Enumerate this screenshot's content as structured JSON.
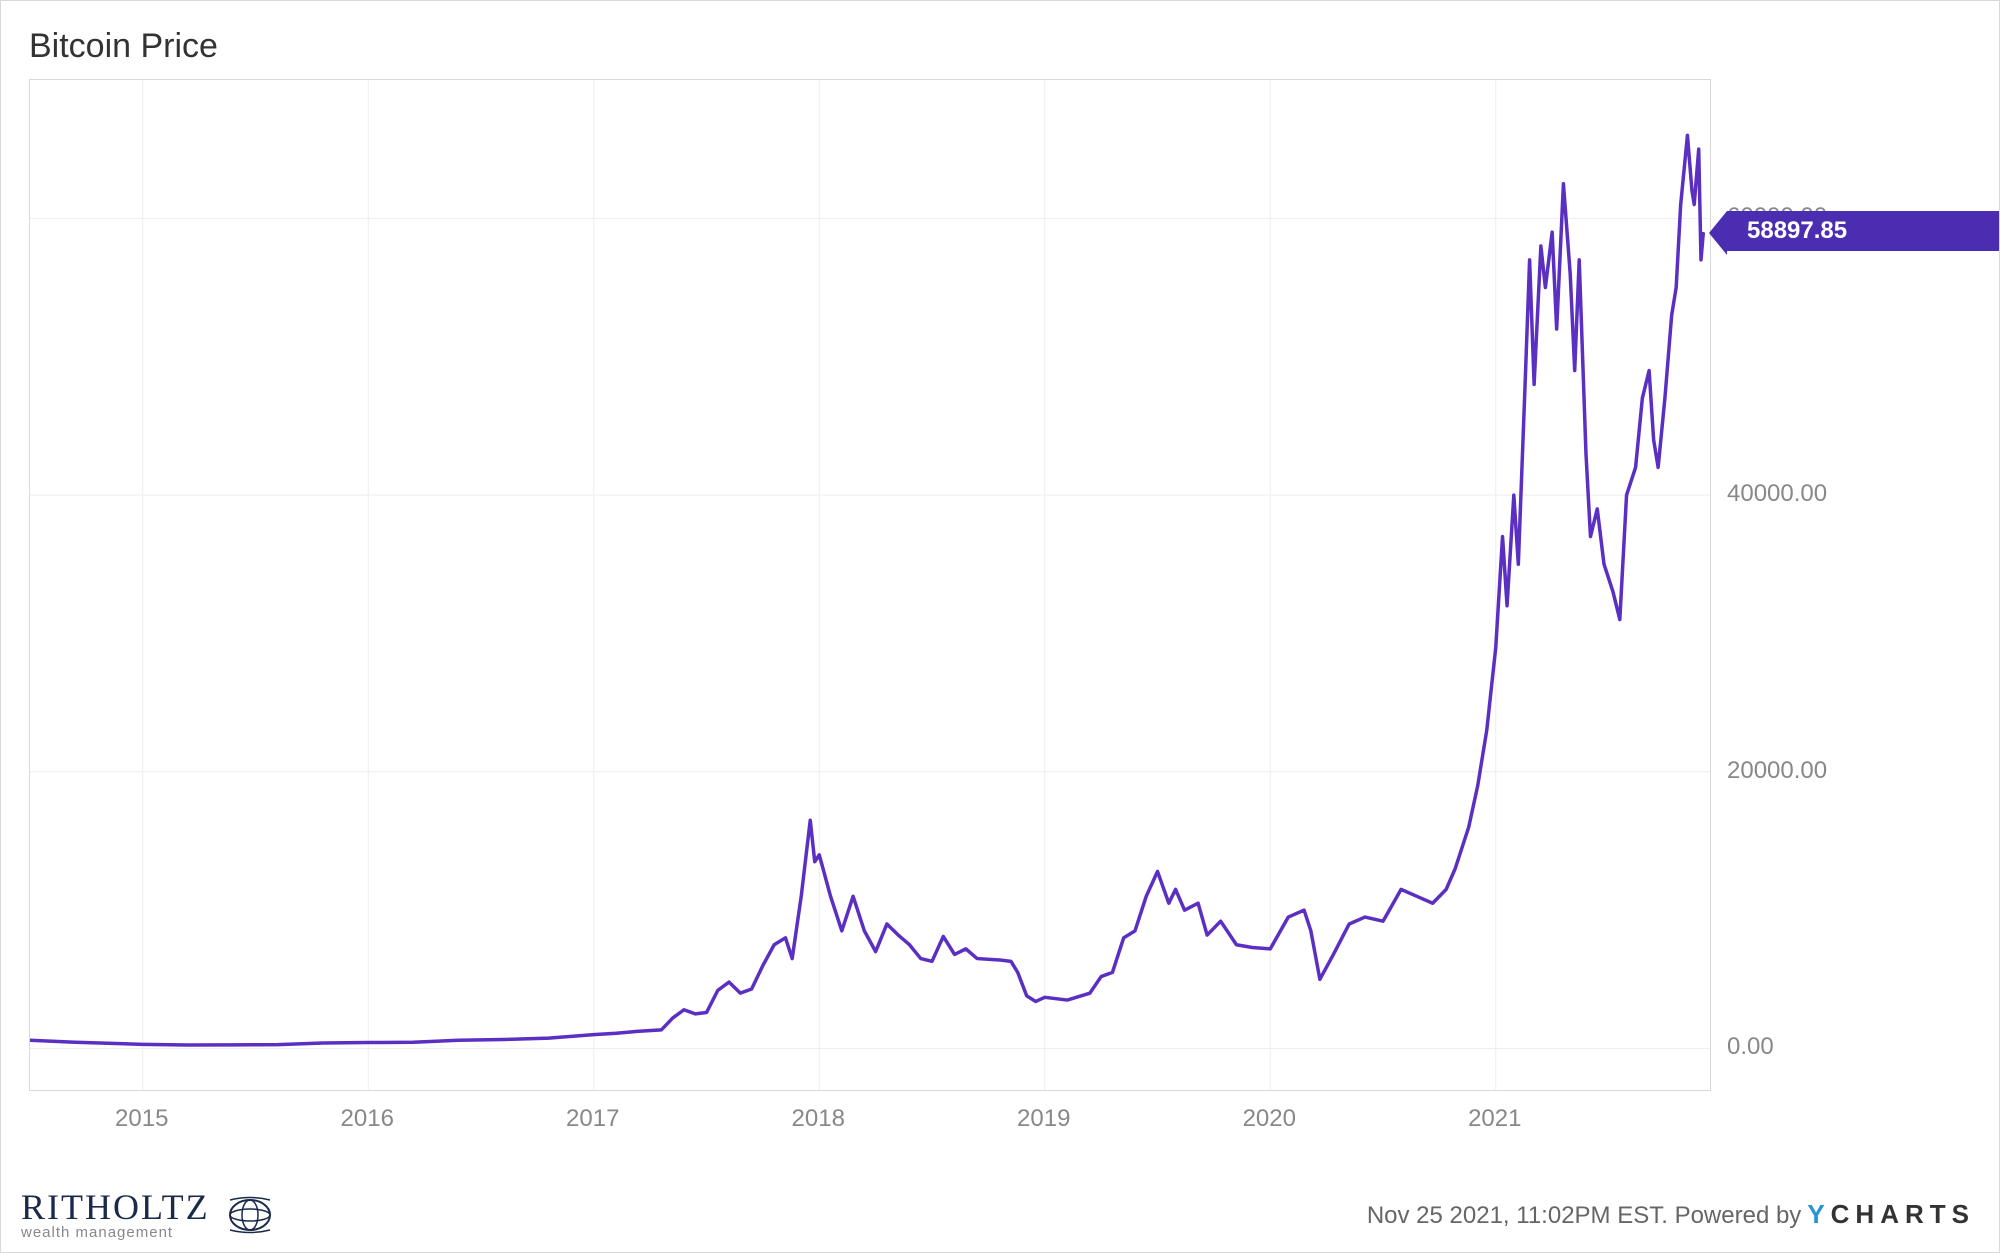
{
  "chart": {
    "type": "line",
    "title": "Bitcoin Price",
    "title_fontsize": 34,
    "title_color": "#333333",
    "background_color": "#ffffff",
    "border_color": "#d9d9d9",
    "plot_border_color": "#d9d9d9",
    "grid_color": "#eeeeee",
    "line_color": "#5a2fc2",
    "line_width": 3.5,
    "x_axis": {
      "domain_start": 2014.5,
      "domain_end": 2021.95,
      "ticks": [
        2015,
        2016,
        2017,
        2018,
        2019,
        2020,
        2021
      ],
      "tick_labels": [
        "2015",
        "2016",
        "2017",
        "2018",
        "2019",
        "2020",
        "2021"
      ],
      "label_fontsize": 24,
      "label_color": "#888888"
    },
    "y_axis": {
      "domain_min": -3000,
      "domain_max": 70000,
      "ticks": [
        0,
        20000,
        40000,
        60000
      ],
      "tick_labels": [
        "0.00",
        "20000.00",
        "40000.00",
        "60000.00"
      ],
      "label_fontsize": 24,
      "label_color": "#888888"
    },
    "flag": {
      "value": 58897.85,
      "label": "58897.85",
      "bg_color": "#4b2db2",
      "text_color": "#ffffff",
      "fontsize": 24
    },
    "series": [
      {
        "x": 2014.5,
        "y": 600
      },
      {
        "x": 2014.7,
        "y": 450
      },
      {
        "x": 2014.9,
        "y": 350
      },
      {
        "x": 2015.0,
        "y": 300
      },
      {
        "x": 2015.2,
        "y": 250
      },
      {
        "x": 2015.4,
        "y": 260
      },
      {
        "x": 2015.6,
        "y": 280
      },
      {
        "x": 2015.8,
        "y": 400
      },
      {
        "x": 2016.0,
        "y": 430
      },
      {
        "x": 2016.2,
        "y": 450
      },
      {
        "x": 2016.4,
        "y": 600
      },
      {
        "x": 2016.6,
        "y": 650
      },
      {
        "x": 2016.8,
        "y": 750
      },
      {
        "x": 2017.0,
        "y": 1000
      },
      {
        "x": 2017.1,
        "y": 1100
      },
      {
        "x": 2017.2,
        "y": 1250
      },
      {
        "x": 2017.3,
        "y": 1350
      },
      {
        "x": 2017.35,
        "y": 2200
      },
      {
        "x": 2017.4,
        "y": 2800
      },
      {
        "x": 2017.45,
        "y": 2500
      },
      {
        "x": 2017.5,
        "y": 2600
      },
      {
        "x": 2017.55,
        "y": 4200
      },
      {
        "x": 2017.6,
        "y": 4800
      },
      {
        "x": 2017.65,
        "y": 4000
      },
      {
        "x": 2017.7,
        "y": 4300
      },
      {
        "x": 2017.75,
        "y": 6000
      },
      {
        "x": 2017.8,
        "y": 7500
      },
      {
        "x": 2017.85,
        "y": 8000
      },
      {
        "x": 2017.88,
        "y": 6500
      },
      {
        "x": 2017.92,
        "y": 11000
      },
      {
        "x": 2017.96,
        "y": 16500
      },
      {
        "x": 2017.98,
        "y": 13500
      },
      {
        "x": 2018.0,
        "y": 14000
      },
      {
        "x": 2018.05,
        "y": 11000
      },
      {
        "x": 2018.1,
        "y": 8500
      },
      {
        "x": 2018.15,
        "y": 11000
      },
      {
        "x": 2018.2,
        "y": 8500
      },
      {
        "x": 2018.25,
        "y": 7000
      },
      {
        "x": 2018.3,
        "y": 9000
      },
      {
        "x": 2018.35,
        "y": 8200
      },
      {
        "x": 2018.4,
        "y": 7500
      },
      {
        "x": 2018.45,
        "y": 6500
      },
      {
        "x": 2018.5,
        "y": 6300
      },
      {
        "x": 2018.55,
        "y": 8100
      },
      {
        "x": 2018.6,
        "y": 6800
      },
      {
        "x": 2018.65,
        "y": 7200
      },
      {
        "x": 2018.7,
        "y": 6500
      },
      {
        "x": 2018.8,
        "y": 6400
      },
      {
        "x": 2018.85,
        "y": 6300
      },
      {
        "x": 2018.88,
        "y": 5500
      },
      {
        "x": 2018.92,
        "y": 3800
      },
      {
        "x": 2018.96,
        "y": 3400
      },
      {
        "x": 2019.0,
        "y": 3700
      },
      {
        "x": 2019.1,
        "y": 3500
      },
      {
        "x": 2019.2,
        "y": 4000
      },
      {
        "x": 2019.25,
        "y": 5200
      },
      {
        "x": 2019.3,
        "y": 5500
      },
      {
        "x": 2019.35,
        "y": 8000
      },
      {
        "x": 2019.4,
        "y": 8500
      },
      {
        "x": 2019.45,
        "y": 11000
      },
      {
        "x": 2019.5,
        "y": 12800
      },
      {
        "x": 2019.55,
        "y": 10500
      },
      {
        "x": 2019.58,
        "y": 11500
      },
      {
        "x": 2019.62,
        "y": 10000
      },
      {
        "x": 2019.68,
        "y": 10500
      },
      {
        "x": 2019.72,
        "y": 8200
      },
      {
        "x": 2019.78,
        "y": 9200
      },
      {
        "x": 2019.85,
        "y": 7500
      },
      {
        "x": 2019.92,
        "y": 7300
      },
      {
        "x": 2020.0,
        "y": 7200
      },
      {
        "x": 2020.08,
        "y": 9500
      },
      {
        "x": 2020.15,
        "y": 10000
      },
      {
        "x": 2020.18,
        "y": 8500
      },
      {
        "x": 2020.22,
        "y": 5000
      },
      {
        "x": 2020.28,
        "y": 6800
      },
      {
        "x": 2020.35,
        "y": 9000
      },
      {
        "x": 2020.42,
        "y": 9500
      },
      {
        "x": 2020.5,
        "y": 9200
      },
      {
        "x": 2020.58,
        "y": 11500
      },
      {
        "x": 2020.65,
        "y": 11000
      },
      {
        "x": 2020.72,
        "y": 10500
      },
      {
        "x": 2020.78,
        "y": 11500
      },
      {
        "x": 2020.82,
        "y": 13000
      },
      {
        "x": 2020.88,
        "y": 16000
      },
      {
        "x": 2020.92,
        "y": 19000
      },
      {
        "x": 2020.96,
        "y": 23000
      },
      {
        "x": 2021.0,
        "y": 29000
      },
      {
        "x": 2021.03,
        "y": 37000
      },
      {
        "x": 2021.05,
        "y": 32000
      },
      {
        "x": 2021.08,
        "y": 40000
      },
      {
        "x": 2021.1,
        "y": 35000
      },
      {
        "x": 2021.13,
        "y": 48000
      },
      {
        "x": 2021.15,
        "y": 57000
      },
      {
        "x": 2021.17,
        "y": 48000
      },
      {
        "x": 2021.2,
        "y": 58000
      },
      {
        "x": 2021.22,
        "y": 55000
      },
      {
        "x": 2021.25,
        "y": 59000
      },
      {
        "x": 2021.27,
        "y": 52000
      },
      {
        "x": 2021.3,
        "y": 62500
      },
      {
        "x": 2021.33,
        "y": 56000
      },
      {
        "x": 2021.35,
        "y": 49000
      },
      {
        "x": 2021.37,
        "y": 57000
      },
      {
        "x": 2021.4,
        "y": 43000
      },
      {
        "x": 2021.42,
        "y": 37000
      },
      {
        "x": 2021.45,
        "y": 39000
      },
      {
        "x": 2021.48,
        "y": 35000
      },
      {
        "x": 2021.5,
        "y": 34000
      },
      {
        "x": 2021.52,
        "y": 33000
      },
      {
        "x": 2021.55,
        "y": 31000
      },
      {
        "x": 2021.58,
        "y": 40000
      },
      {
        "x": 2021.62,
        "y": 42000
      },
      {
        "x": 2021.65,
        "y": 47000
      },
      {
        "x": 2021.68,
        "y": 49000
      },
      {
        "x": 2021.7,
        "y": 44000
      },
      {
        "x": 2021.72,
        "y": 42000
      },
      {
        "x": 2021.75,
        "y": 47000
      },
      {
        "x": 2021.78,
        "y": 53000
      },
      {
        "x": 2021.8,
        "y": 55000
      },
      {
        "x": 2021.82,
        "y": 61000
      },
      {
        "x": 2021.85,
        "y": 66000
      },
      {
        "x": 2021.87,
        "y": 62000
      },
      {
        "x": 2021.88,
        "y": 61000
      },
      {
        "x": 2021.9,
        "y": 65000
      },
      {
        "x": 2021.91,
        "y": 57000
      },
      {
        "x": 2021.92,
        "y": 58897.85
      }
    ]
  },
  "footer": {
    "logo_main": "RITHOLTZ",
    "logo_sub": "wealth management",
    "logo_main_color": "#1a2a4a",
    "logo_sub_color": "#888888",
    "timestamp": "Nov 25 2021, 11:02PM EST. Powered by",
    "timestamp_color": "#666666",
    "brand_y": "Y",
    "brand_rest": "CHARTS",
    "brand_y_color": "#2596d1",
    "brand_rest_color": "#333333"
  }
}
